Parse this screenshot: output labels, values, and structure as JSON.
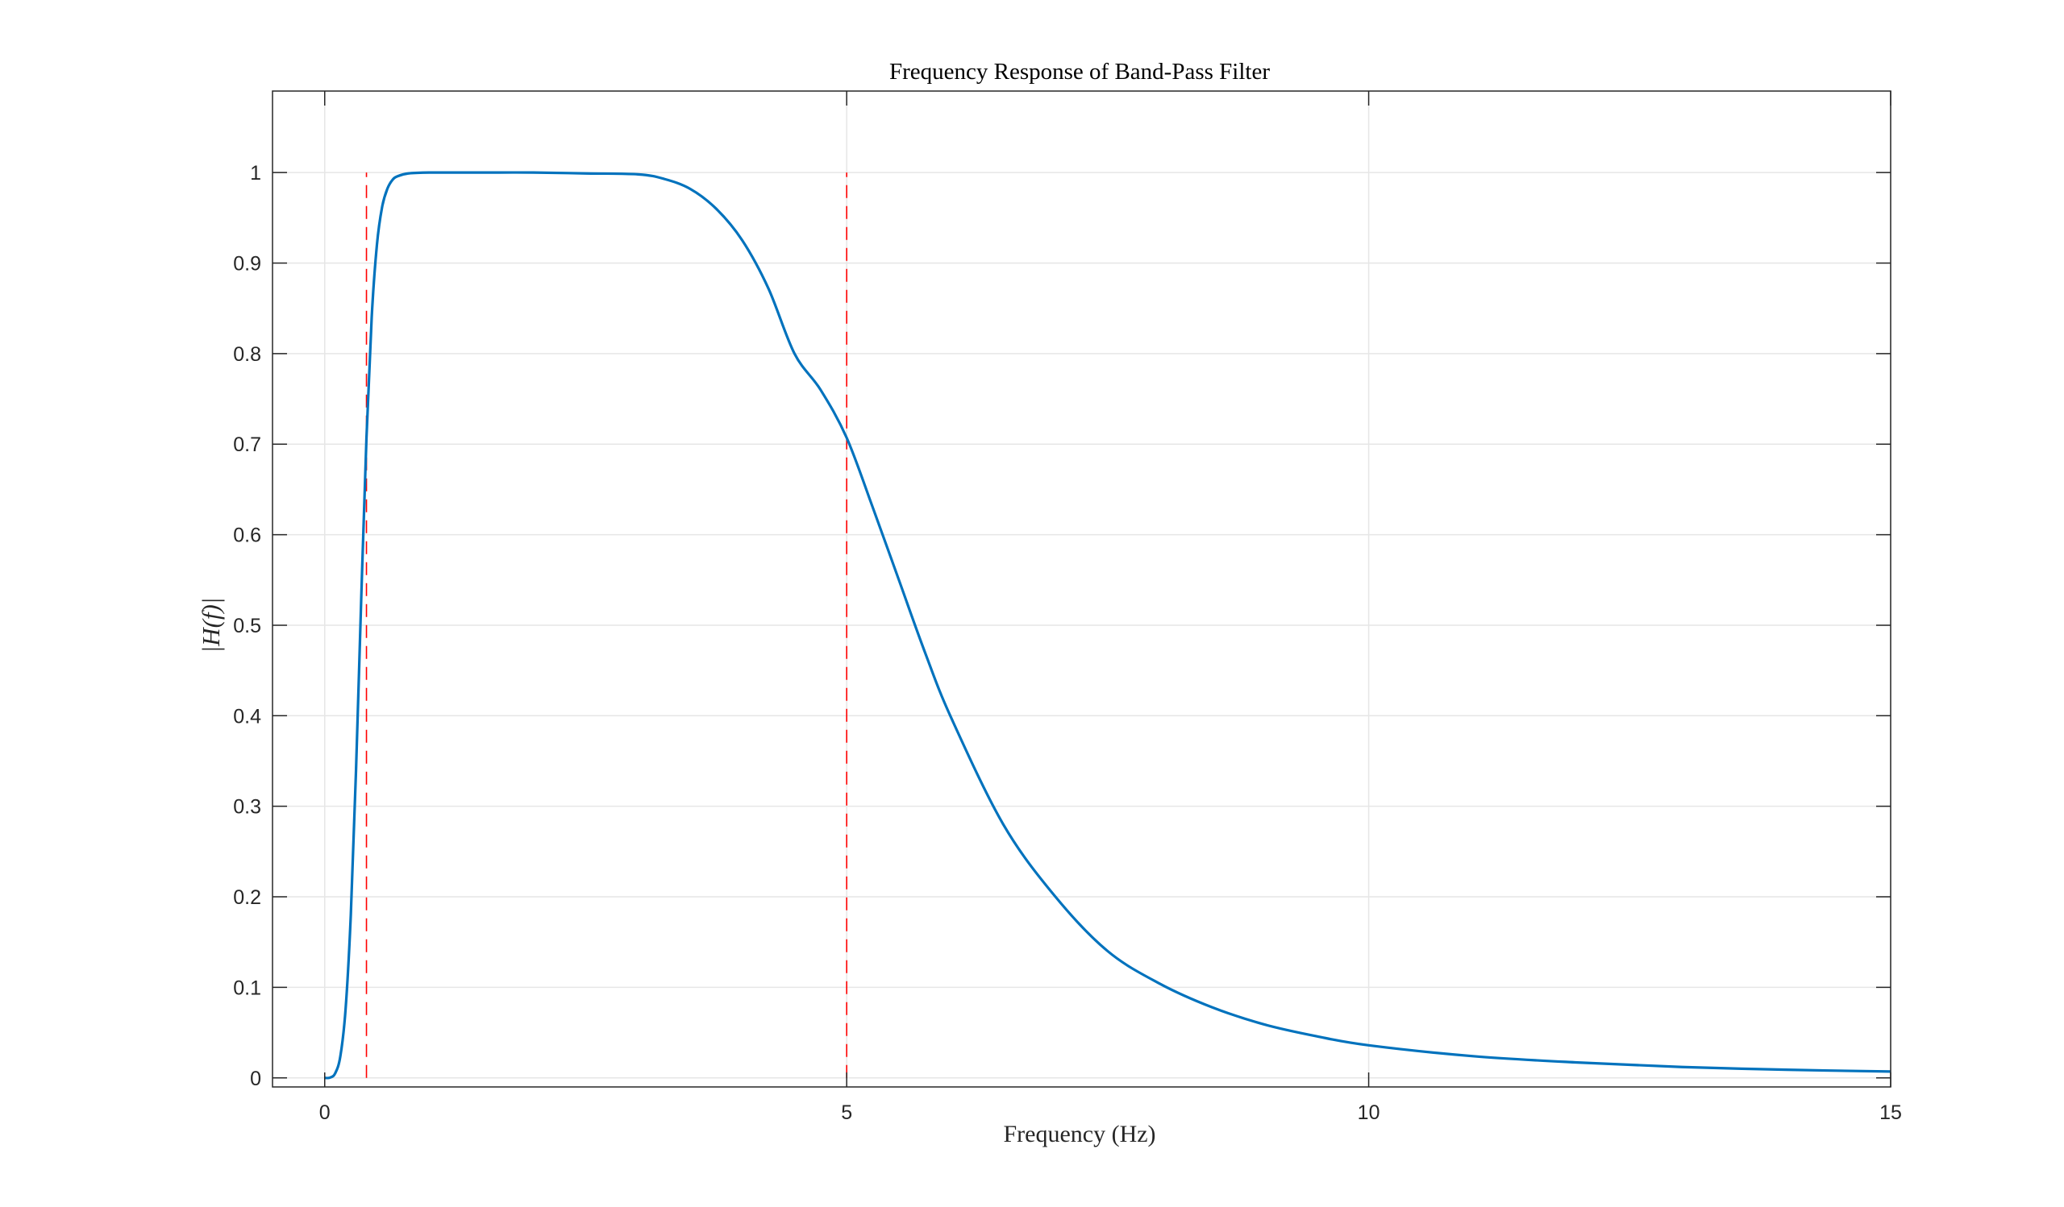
{
  "chart_data": {
    "type": "line",
    "title": "Frequency Response of Band-Pass Filter",
    "xlabel": "Frequency (Hz)",
    "ylabel": "|H(f)|",
    "xlim": [
      -0.5,
      15
    ],
    "ylim": [
      -0.01,
      1.09
    ],
    "xticks": [
      0,
      5,
      10,
      15
    ],
    "yticks": [
      0,
      0.1,
      0.2,
      0.3,
      0.4,
      0.5,
      0.6,
      0.7,
      0.8,
      0.9,
      1
    ],
    "xtick_labels": [
      "0",
      "5",
      "10",
      "15"
    ],
    "ytick_labels": [
      "0",
      "0.1",
      "0.2",
      "0.3",
      "0.4",
      "0.5",
      "0.6",
      "0.7",
      "0.8",
      "0.9",
      "1"
    ],
    "grid": true,
    "series": [
      {
        "color": "#0072BD",
        "x": [
          0,
          0.05,
          0.1,
          0.15,
          0.2,
          0.25,
          0.3,
          0.35,
          0.4,
          0.45,
          0.5,
          0.55,
          0.6,
          0.65,
          0.7,
          0.8,
          1,
          1.5,
          2,
          2.5,
          3,
          3.25,
          3.5,
          3.75,
          4,
          4.25,
          4.5,
          4.75,
          5,
          5.25,
          5.5,
          5.75,
          6,
          6.5,
          7,
          7.5,
          8,
          8.5,
          9,
          9.5,
          10,
          11,
          12,
          13,
          14,
          15
        ],
        "y": [
          0,
          0.0003,
          0.005,
          0.024,
          0.076,
          0.18,
          0.34,
          0.53,
          0.707,
          0.84,
          0.92,
          0.962,
          0.982,
          0.992,
          0.996,
          0.999,
          1,
          1,
          1,
          0.999,
          0.998,
          0.993,
          0.982,
          0.96,
          0.925,
          0.872,
          0.8,
          0.76,
          0.707,
          0.63,
          0.55,
          0.47,
          0.398,
          0.28,
          0.2,
          0.14,
          0.104,
          0.078,
          0.059,
          0.046,
          0.036,
          0.024,
          0.017,
          0.012,
          0.009,
          0.007
        ]
      }
    ],
    "cutoff_lines": [
      {
        "x": 0.4,
        "y_range": [
          0,
          1
        ],
        "color": "#FF0000",
        "style": "dashed"
      },
      {
        "x": 5,
        "y_range": [
          0,
          1
        ],
        "color": "#FF0000",
        "style": "dashed"
      }
    ]
  }
}
